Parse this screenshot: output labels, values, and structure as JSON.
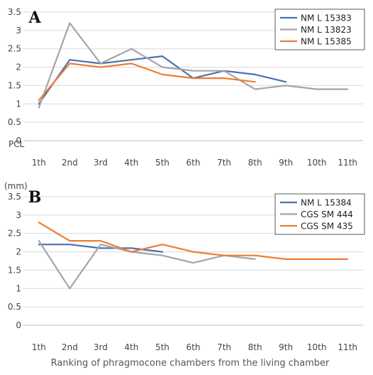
{
  "chart_data": [
    {
      "type": "line",
      "panel_label": "A",
      "y_axis_note": "PCL",
      "categories": [
        "1th",
        "2nd",
        "3rd",
        "4th",
        "5th",
        "6th",
        "7th",
        "8th",
        "9th",
        "10th",
        "11th"
      ],
      "ylim": [
        0,
        3.5
      ],
      "yticks": [
        "0",
        "0.5",
        "1",
        "1.5",
        "2",
        "2.5",
        "3",
        "3.5"
      ],
      "grid": true,
      "legend_position": "top-right",
      "series": [
        {
          "name": "NM L 15383",
          "color": "#4a72b0",
          "values": [
            1.0,
            2.2,
            2.1,
            2.2,
            2.3,
            1.7,
            1.9,
            1.8,
            1.6,
            null,
            null
          ]
        },
        {
          "name": "NM L 13823",
          "color": "#a5a5a5",
          "values": [
            0.9,
            3.2,
            2.1,
            2.5,
            2.0,
            1.9,
            1.9,
            1.4,
            1.5,
            1.4,
            1.4
          ]
        },
        {
          "name": "NM L 15385",
          "color": "#ed7d31",
          "values": [
            1.1,
            2.1,
            2.0,
            2.1,
            1.8,
            1.7,
            1.7,
            1.6,
            null,
            null,
            null
          ]
        }
      ]
    },
    {
      "type": "line",
      "panel_label": "B",
      "y_axis_note": "(mm)",
      "categories": [
        "1th",
        "2nd",
        "3rd",
        "4th",
        "5th",
        "6th",
        "7th",
        "8th",
        "9th",
        "10th",
        "11th"
      ],
      "ylim": [
        0,
        3.5
      ],
      "yticks": [
        "0",
        "0.5",
        "1",
        "1.5",
        "2",
        "2.5",
        "3",
        "3.5"
      ],
      "grid": true,
      "legend_position": "top-right",
      "xlabel": "Ranking of phragmocone chambers from the living chamber",
      "series": [
        {
          "name": "NM L 15384",
          "color": "#4a72b0",
          "values": [
            2.2,
            2.2,
            2.1,
            2.1,
            2.0,
            null,
            null,
            null,
            null,
            null,
            null
          ]
        },
        {
          "name": "CGS SM 444",
          "color": "#a5a5a5",
          "values": [
            2.3,
            1.0,
            2.2,
            2.0,
            1.9,
            1.7,
            1.9,
            1.8,
            null,
            null,
            null
          ]
        },
        {
          "name": "CGS SM 435",
          "color": "#ed7d31",
          "values": [
            2.8,
            2.3,
            2.3,
            2.0,
            2.2,
            2.0,
            1.9,
            1.9,
            1.8,
            1.8,
            1.8
          ]
        }
      ]
    }
  ]
}
